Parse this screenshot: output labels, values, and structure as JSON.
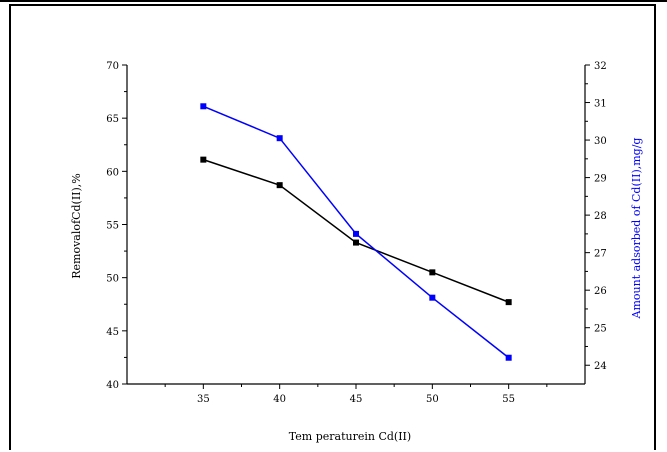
{
  "chart_data": {
    "type": "line",
    "title": "",
    "xlabel": "Tem peraturein Cd(II)",
    "ylabel": "RemovalofCd(II),%",
    "y2label": "Amount adsorbed of Cd(II),mg/g",
    "x": [
      35,
      40,
      45,
      50,
      55
    ],
    "xlim": [
      30,
      60
    ],
    "ylim": [
      40,
      70
    ],
    "y2lim": [
      23.5,
      32
    ],
    "xticks": [
      "35",
      "40",
      "45",
      "50",
      "55"
    ],
    "yticks": [
      "40",
      "45",
      "50",
      "55",
      "60",
      "65",
      "70"
    ],
    "y2ticks": [
      "24",
      "25",
      "26",
      "27",
      "28",
      "29",
      "30",
      "31",
      "32"
    ],
    "grid": false,
    "legend": "none",
    "series": [
      {
        "axis": "left",
        "color": "#000000",
        "marker": "square",
        "values": [
          61.1,
          58.7,
          53.3,
          50.5,
          47.7
        ]
      },
      {
        "axis": "right",
        "color": "#0000ff",
        "marker": "square",
        "values": [
          30.9,
          30.05,
          27.5,
          25.8,
          24.2
        ]
      }
    ]
  }
}
